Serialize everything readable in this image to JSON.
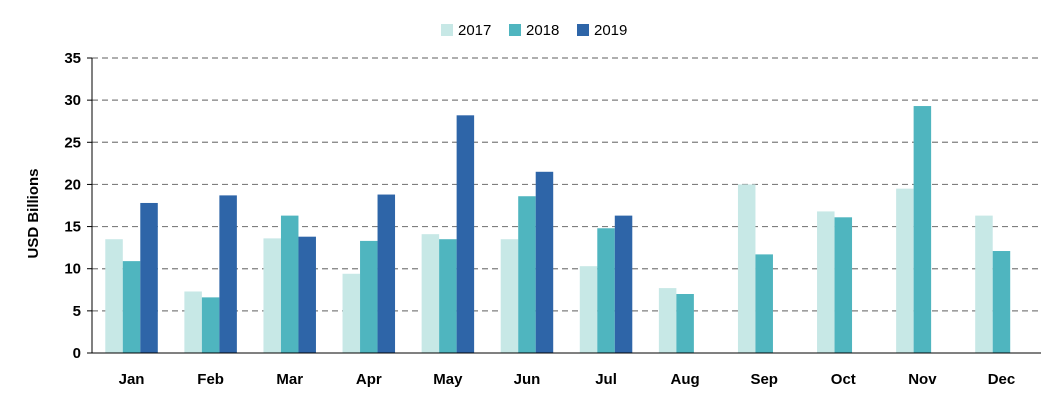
{
  "chart_data": {
    "type": "bar",
    "title": "",
    "xlabel": "",
    "ylabel": "USD Billions",
    "ylim": [
      0,
      35
    ],
    "yticks": [
      0,
      5,
      10,
      15,
      20,
      25,
      30,
      35
    ],
    "grid": "horizontal dashed",
    "legend_position": "top-center",
    "categories": [
      "Jan",
      "Feb",
      "Mar",
      "Apr",
      "May",
      "Jun",
      "Jul",
      "Aug",
      "Sep",
      "Oct",
      "Nov",
      "Dec"
    ],
    "series": [
      {
        "name": "2017",
        "color": "#c7e8e6",
        "values": [
          13.5,
          7.3,
          13.6,
          9.4,
          14.1,
          13.5,
          10.3,
          7.7,
          20.0,
          16.8,
          19.5,
          16.3
        ]
      },
      {
        "name": "2018",
        "color": "#4fb5bf",
        "values": [
          10.9,
          6.6,
          16.3,
          13.3,
          13.5,
          18.6,
          14.8,
          7.0,
          11.7,
          16.1,
          29.3,
          12.1
        ]
      },
      {
        "name": "2019",
        "color": "#2e65a8",
        "values": [
          17.8,
          18.7,
          13.8,
          18.8,
          28.2,
          21.5,
          16.3,
          null,
          null,
          null,
          null,
          null
        ]
      }
    ]
  }
}
